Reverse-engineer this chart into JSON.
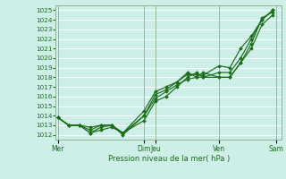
{
  "bg_color": "#ceeee8",
  "grid_color": "#ffffff",
  "line_color": "#1a6e1a",
  "marker_color": "#1a6e1a",
  "ylabel_ticks": [
    1012,
    1013,
    1014,
    1015,
    1016,
    1017,
    1018,
    1019,
    1020,
    1021,
    1022,
    1023,
    1024,
    1025
  ],
  "xlabel": "Pression niveau de la mer( hPa )",
  "xtick_labels": [
    "Mer",
    "Dim",
    "Jeu",
    "Ven",
    "Sam"
  ],
  "xtick_positions": [
    0.0,
    0.385,
    0.435,
    0.72,
    0.975
  ],
  "vline_positions": [
    0.0,
    0.385,
    0.435,
    0.72,
    0.975
  ],
  "ylim": [
    1011.5,
    1025.5
  ],
  "series": [
    {
      "x": [
        0.0,
        0.048,
        0.096,
        0.144,
        0.192,
        0.24,
        0.29,
        0.385,
        0.435,
        0.483,
        0.531,
        0.579,
        0.62,
        0.648,
        0.72,
        0.768,
        0.816,
        0.864,
        0.912,
        0.96
      ],
      "y": [
        1013.8,
        1013.0,
        1013.0,
        1012.2,
        1012.8,
        1013.0,
        1012.2,
        1014.0,
        1016.2,
        1016.7,
        1017.5,
        1018.3,
        1018.3,
        1018.2,
        1019.2,
        1019.0,
        1021.0,
        1022.3,
        1024.0,
        1025.0
      ]
    },
    {
      "x": [
        0.0,
        0.048,
        0.096,
        0.144,
        0.192,
        0.24,
        0.29,
        0.385,
        0.435,
        0.483,
        0.531,
        0.579,
        0.62,
        0.648,
        0.72,
        0.768,
        0.816,
        0.864,
        0.912,
        0.96
      ],
      "y": [
        1013.8,
        1013.0,
        1013.0,
        1012.2,
        1012.5,
        1012.8,
        1012.2,
        1013.5,
        1015.5,
        1016.0,
        1017.0,
        1018.0,
        1018.5,
        1018.0,
        1018.0,
        1018.0,
        1019.5,
        1021.5,
        1024.2,
        1024.8
      ]
    },
    {
      "x": [
        0.0,
        0.048,
        0.096,
        0.144,
        0.192,
        0.24,
        0.29,
        0.385,
        0.435,
        0.483,
        0.531,
        0.579,
        0.62,
        0.648,
        0.72,
        0.768,
        0.816,
        0.864,
        0.912,
        0.96
      ],
      "y": [
        1013.8,
        1013.0,
        1013.0,
        1012.5,
        1013.0,
        1013.0,
        1012.2,
        1014.5,
        1016.5,
        1017.0,
        1017.5,
        1018.5,
        1018.0,
        1018.0,
        1018.5,
        1018.5,
        1020.0,
        1022.0,
        1024.0,
        1025.0
      ]
    },
    {
      "x": [
        0.0,
        0.048,
        0.096,
        0.144,
        0.192,
        0.24,
        0.29,
        0.385,
        0.435,
        0.483,
        0.531,
        0.579,
        0.62,
        0.648,
        0.72,
        0.768,
        0.816,
        0.864,
        0.912,
        0.96
      ],
      "y": [
        1013.8,
        1013.0,
        1013.0,
        1012.8,
        1013.0,
        1013.0,
        1012.0,
        1014.0,
        1015.8,
        1016.5,
        1017.2,
        1017.8,
        1018.0,
        1018.5,
        1018.0,
        1018.0,
        1019.5,
        1021.0,
        1023.5,
        1024.5
      ]
    }
  ]
}
